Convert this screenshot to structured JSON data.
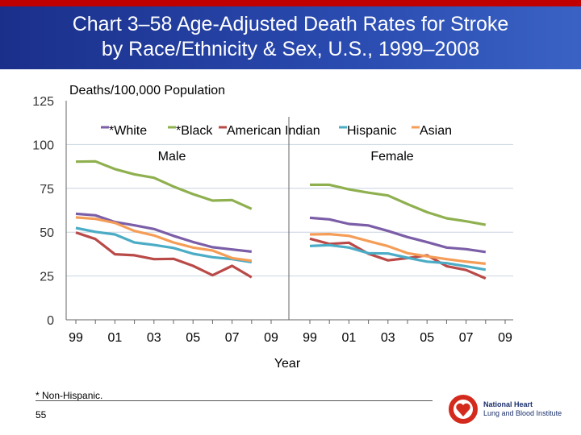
{
  "header": {
    "title_line1": "Chart 3–58 Age-Adjusted Death Rates for Stroke",
    "title_line2": "by Race/Ethnicity & Sex, U.S., 1999–2008"
  },
  "footer": {
    "footnote": "* Non-Hispanic.",
    "page_number": "55",
    "logo_text_line1": "National Heart",
    "logo_text_line2": "Lung and Blood Institute"
  },
  "chart_data": {
    "type": "line",
    "ylabel": "Deaths/100,000 Population",
    "xlabel": "Year",
    "ylim": [
      0,
      125
    ],
    "yticks": [
      "0",
      "25",
      "50",
      "75",
      "100",
      "125"
    ],
    "xticks": [
      "99",
      "01",
      "03",
      "05",
      "07",
      "09"
    ],
    "x": [
      1999,
      2000,
      2001,
      2002,
      2003,
      2004,
      2005,
      2006,
      2007,
      2008
    ],
    "grid": "horizontal",
    "legend_position": "top",
    "panels": [
      {
        "name": "Male",
        "series": [
          {
            "name": "*White",
            "color": "#7b5ea7",
            "values": [
              60.5,
              59.6,
              55.8,
              53.9,
              51.8,
              47.9,
              44.4,
              41.4,
              40.1,
              38.9
            ]
          },
          {
            "name": "*Black",
            "color": "#8fb04f",
            "values": [
              90.2,
              90.4,
              86,
              83,
              81,
              76,
              71.7,
              68,
              68.3,
              63.3
            ]
          },
          {
            "name": "American Indian",
            "color": "#b94a48",
            "values": [
              49.8,
              46.1,
              37.4,
              36.8,
              34.6,
              34.8,
              30.8,
              25.4,
              30.8,
              24.2
            ]
          },
          {
            "name": "Hispanic",
            "color": "#4bacc6",
            "values": [
              52.4,
              50.2,
              48.7,
              44.1,
              42.7,
              41,
              37.7,
              35.7,
              34.6,
              32.9
            ]
          },
          {
            "name": "Asian",
            "color": "#f59d56",
            "values": [
              58.4,
              57.6,
              55.3,
              50.7,
              48.1,
              44.1,
              41.2,
              39.5,
              35.2,
              33.7
            ]
          }
        ]
      },
      {
        "name": "Female",
        "series": [
          {
            "name": "*White",
            "color": "#7b5ea7",
            "values": [
              58.2,
              57.3,
              54.7,
              53.8,
              50.7,
              47.2,
              44.3,
              41.2,
              40.3,
              38.7
            ]
          },
          {
            "name": "*Black",
            "color": "#8fb04f",
            "values": [
              77,
              77,
              74.4,
              72.5,
              70.9,
              66,
              61.4,
              57.9,
              56.2,
              54.2
            ]
          },
          {
            "name": "American Indian",
            "color": "#b94a48",
            "values": [
              46.3,
              43.3,
              44,
              37.7,
              33.9,
              35.2,
              36.8,
              30.6,
              28.4,
              23.6
            ]
          },
          {
            "name": "Hispanic",
            "color": "#4bacc6",
            "values": [
              42.1,
              42.6,
              41.2,
              38,
              37.8,
              35.4,
              33.2,
              32.3,
              30.5,
              28.6
            ]
          },
          {
            "name": "Asian",
            "color": "#f59d56",
            "values": [
              48.7,
              48.9,
              47.9,
              44.9,
              42,
              38,
              36.2,
              34.6,
              33.2,
              32
            ]
          }
        ]
      }
    ]
  }
}
